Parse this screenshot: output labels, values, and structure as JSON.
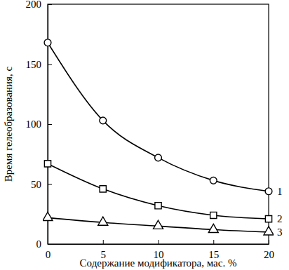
{
  "chart_data": {
    "type": "line",
    "x_label": "Содержание модификатора, мас. %",
    "y_label": "Время гелеобразования, с",
    "x": [
      0,
      5,
      10,
      15,
      20
    ],
    "series": [
      {
        "name": "1",
        "color": "#000000",
        "marker": "circle",
        "line_style": "solid",
        "values": [
          168,
          103,
          72,
          53,
          44
        ]
      },
      {
        "name": "2",
        "color": "#000000",
        "marker": "square",
        "line_style": "solid",
        "values": [
          67,
          46,
          32,
          24,
          21
        ]
      },
      {
        "name": "3",
        "color": "#000000",
        "marker": "triangle",
        "line_style": "solid",
        "values": [
          22,
          18,
          15,
          12,
          10
        ]
      }
    ],
    "xlim": [
      0,
      20
    ],
    "xticks": [
      0,
      5,
      10,
      15,
      20
    ],
    "ylim": [
      0,
      200
    ],
    "yticks": [
      0,
      50,
      100,
      150,
      200
    ],
    "grid": false
  }
}
